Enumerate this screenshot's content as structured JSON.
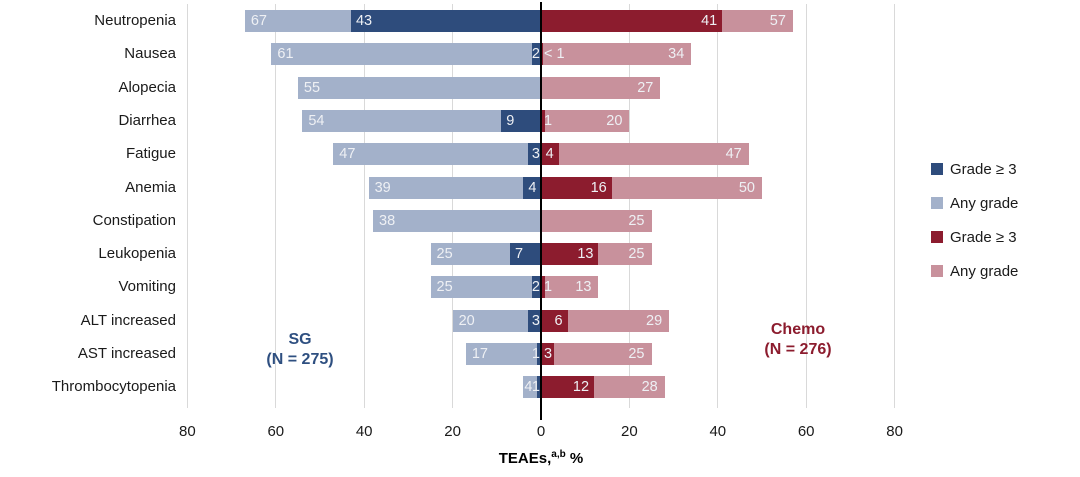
{
  "chart_data": {
    "type": "bar",
    "orientation": "diverging-horizontal",
    "title": "",
    "xlabel": {
      "prefix": "TEAEs,",
      "sup": "a,b",
      "suffix": " %"
    },
    "x_axis": {
      "tick_values": [
        -80,
        -60,
        -40,
        -20,
        0,
        20,
        40,
        60,
        80
      ],
      "tick_labels": [
        "80",
        "60",
        "40",
        "20",
        "0",
        "20",
        "40",
        "60",
        "80"
      ],
      "xlim": [
        -90,
        90
      ],
      "grid": true
    },
    "categories": [
      "Neutropenia",
      "Nausea",
      "Alopecia",
      "Diarrhea",
      "Fatigue",
      "Anemia",
      "Constipation",
      "Leukopenia",
      "Vomiting",
      "ALT increased",
      "AST increased",
      "Thrombocytopenia"
    ],
    "series": [
      {
        "name": "SG Any grade",
        "group": "SG",
        "side": "left",
        "kind": "any",
        "color": "#a3b1ca",
        "values": [
          67,
          61,
          55,
          54,
          47,
          39,
          38,
          25,
          25,
          20,
          17,
          4
        ],
        "labels": [
          "67",
          "61",
          "55",
          "54",
          "47",
          "39",
          "38",
          "25",
          "25",
          "20",
          "17",
          "4"
        ]
      },
      {
        "name": "SG Grade ≥ 3",
        "group": "SG",
        "side": "left",
        "kind": "grade",
        "color": "#2e4c7c",
        "values": [
          43,
          2,
          null,
          9,
          3,
          4,
          null,
          7,
          2,
          3,
          1,
          1
        ],
        "labels": [
          "43",
          "2",
          null,
          "9",
          "3",
          "4",
          null,
          "7",
          "2",
          "3",
          "1",
          "1"
        ]
      },
      {
        "name": "Chemo Grade ≥ 3",
        "group": "Chemo",
        "side": "right",
        "kind": "grade",
        "color": "#8c1c2e",
        "values": [
          41,
          0.5,
          null,
          1,
          4,
          16,
          null,
          13,
          1,
          6,
          3,
          12
        ],
        "labels": [
          "41",
          "< 1",
          null,
          "1",
          "4",
          "16",
          null,
          "13",
          "1",
          "6",
          "3",
          "12"
        ]
      },
      {
        "name": "Chemo Any grade",
        "group": "Chemo",
        "side": "right",
        "kind": "any",
        "color": "#c8919c",
        "values": [
          57,
          34,
          27,
          20,
          47,
          50,
          25,
          25,
          13,
          29,
          25,
          28
        ],
        "labels": [
          "57",
          "34",
          "27",
          "20",
          "47",
          "50",
          "25",
          "25",
          "13",
          "29",
          "25",
          "28"
        ]
      }
    ],
    "legend": {
      "position": "right",
      "items": [
        {
          "label": "Grade ≥ 3",
          "color": "#2e4c7c"
        },
        {
          "label": "Any grade",
          "color": "#a3b1ca"
        },
        {
          "label": "Grade ≥ 3",
          "color": "#8c1c2e"
        },
        {
          "label": "Any grade",
          "color": "#c8919c"
        }
      ]
    },
    "group_labels": {
      "left": {
        "line1": "SG",
        "line2": "(N = 275)",
        "color": "#2e4f80"
      },
      "right": {
        "line1": "Chemo",
        "line2": "(N = 276)",
        "color": "#8c1c2e"
      }
    }
  }
}
